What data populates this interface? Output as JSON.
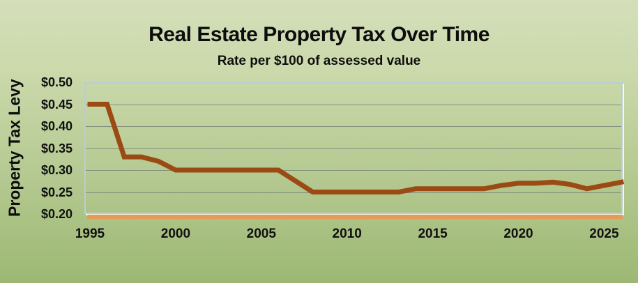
{
  "page": {
    "background_top_color": "#d4dfba",
    "background_bottom_color": "#9cb873"
  },
  "chart_data": {
    "type": "line",
    "title": "Real Estate Property Tax Over Time",
    "subtitle": "Rate per $100 of assessed value",
    "ylabel": "Property Tax Levy",
    "xlabel": "",
    "ylim": [
      0.2,
      0.5
    ],
    "ytick_step": 0.05,
    "yticks": [
      0.5,
      0.45,
      0.4,
      0.35,
      0.3,
      0.25,
      0.2
    ],
    "ytick_labels": [
      "$0.50",
      "$0.45",
      "$0.40",
      "$0.35",
      "$0.30",
      "$0.25",
      "$0.20"
    ],
    "xlim": [
      1995,
      2026
    ],
    "xticks": [
      1995,
      2000,
      2005,
      2010,
      2015,
      2020,
      2025
    ],
    "grid": "horizontal",
    "legend": "none",
    "line_color": "#9c4a14",
    "gridline_color": "#84907b",
    "plot_border_color": "#b9cdd6",
    "axis_strip_color": "#e59a57",
    "series": [
      {
        "name": "Property tax levy rate",
        "x": [
          1995,
          1996,
          1997,
          1998,
          1999,
          2000,
          2001,
          2002,
          2003,
          2004,
          2005,
          2006,
          2007,
          2008,
          2009,
          2010,
          2011,
          2012,
          2013,
          2014,
          2015,
          2016,
          2017,
          2018,
          2019,
          2020,
          2021,
          2022,
          2023,
          2024,
          2025,
          2026
        ],
        "values": [
          0.45,
          0.45,
          0.33,
          0.33,
          0.32,
          0.3,
          0.3,
          0.3,
          0.3,
          0.3,
          0.3,
          0.3,
          0.275,
          0.25,
          0.25,
          0.25,
          0.25,
          0.25,
          0.25,
          0.2575,
          0.2575,
          0.2575,
          0.2575,
          0.2575,
          0.265,
          0.27,
          0.27,
          0.2725,
          0.2675,
          0.2575,
          0.265,
          0.2725
        ]
      }
    ]
  }
}
